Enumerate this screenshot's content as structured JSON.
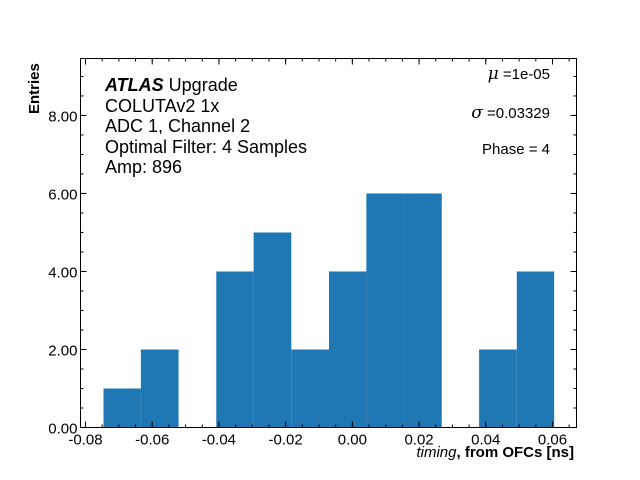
{
  "chart_data": {
    "type": "bar",
    "subtype": "histogram",
    "title": "",
    "xlabel": "timing, from OFCs [ns]",
    "xlabel_parts": {
      "italic": "timing",
      "bold": ", from OFCs [ns]"
    },
    "ylabel": "Entries",
    "xlim": [
      -0.0815,
      0.0672
    ],
    "ylim": [
      0,
      9.46
    ],
    "xticks": [
      -0.08,
      -0.06,
      -0.04,
      -0.02,
      0.0,
      0.02,
      0.04,
      0.06
    ],
    "xtick_labels": [
      "-0.08",
      "-0.06",
      "-0.04",
      "-0.02",
      "0.00",
      "0.02",
      "0.04",
      "0.06"
    ],
    "yticks": [
      0,
      2,
      4,
      6,
      8
    ],
    "ytick_labels": [
      "0.00",
      "2.00",
      "4.00",
      "6.00",
      "8.00"
    ],
    "bin_edges": [
      -0.0746,
      -0.0634,
      -0.0521,
      -0.0408,
      -0.0296,
      -0.0183,
      -0.007,
      0.0042,
      0.0155,
      0.0268,
      0.038,
      0.0493,
      0.0605
    ],
    "values": [
      1,
      2,
      0,
      4,
      5,
      2,
      4,
      6,
      6,
      0,
      2,
      4
    ],
    "bar_color": "#1f77b4",
    "grid": false,
    "legend": null,
    "annotations": {
      "experiment_bold": "ATLAS",
      "experiment_suffix": " Upgrade",
      "lines": [
        "COLUTAv2 1x",
        "ADC 1, Channel 2",
        "Optimal Filter: 4 Samples",
        "Amp: 896"
      ],
      "mu_symbol": "μ",
      "mu_text": " =1e-05",
      "sigma_symbol": "σ",
      "sigma_text": " =0.03329",
      "phase_text": "Phase = 4"
    }
  }
}
